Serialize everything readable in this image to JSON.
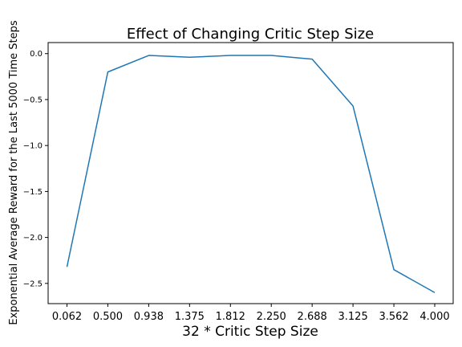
{
  "chart_data": {
    "type": "line",
    "title": "Effect of Changing Critic Step Size",
    "xlabel": "32 * Critic Step Size",
    "ylabel": "Exponential Average Reward for the Last 5000 Time Steps",
    "x_tick_labels": [
      "0.062",
      "0.500",
      "0.938",
      "1.375",
      "1.812",
      "2.250",
      "2.688",
      "3.125",
      "3.562",
      "4.000"
    ],
    "y_ticks": [
      0.0,
      -0.5,
      -1.0,
      -1.5,
      -2.0,
      -2.5
    ],
    "y_tick_labels": [
      "0.0",
      "−0.5",
      "−1.0",
      "−1.5",
      "−2.0",
      "−2.5"
    ],
    "ylim": [
      -2.72,
      0.12
    ],
    "grid": false,
    "series": [
      {
        "color": "#1f77b4",
        "values": [
          -2.32,
          -0.2,
          -0.02,
          -0.04,
          -0.02,
          -0.02,
          -0.06,
          -0.57,
          -2.35,
          -2.6
        ]
      }
    ]
  }
}
